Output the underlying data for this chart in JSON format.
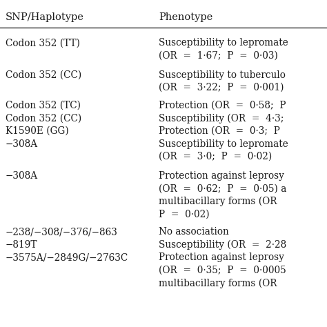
{
  "title_col1": "SNP/Haplotype",
  "title_col2": "Phenotype",
  "col1_lines": [
    "Codon 352 (TT)",
    "",
    "Codon 352 (CC)",
    "",
    "Codon 352 (TC)",
    "Codon 352 (CC)",
    "K1590E (GG)",
    "−308A",
    "",
    "−308A",
    "",
    "",
    "",
    "",
    "−238/−308/−376/−863",
    "−819T",
    "−3575A/−2849G/−2763C",
    "",
    ""
  ],
  "col2_lines": [
    "Susceptibility to lepromate",
    "(OR  =  1·67;  P  =  0·03)",
    "Susceptibility to tuberculo",
    "(OR  =  3·22;  P  =  0·001)",
    "Protection (OR  =  0·58;  P",
    "Susceptibility (OR  =  4·3;",
    "Protection (OR  =  0·3;  P",
    "Susceptibility to lepromate",
    "(OR  =  3·0;  P  =  0·02)",
    "Protection against leprosy",
    "(OR  =  0·62;  P  =  0·05) a",
    "multibacillary forms (OR",
    "P  =  0·02)",
    "No association",
    "No association",
    "Susceptibility (OR  =  2·28",
    "Protection against leprosy",
    "(OR  =  0·35;  P  =  0·0005",
    "multibacillary forms (OR"
  ],
  "bg_color": "#ffffff",
  "text_color": "#1a1a1a",
  "header_fontsize": 10.5,
  "cell_fontsize": 9.8,
  "line_color": "#333333"
}
